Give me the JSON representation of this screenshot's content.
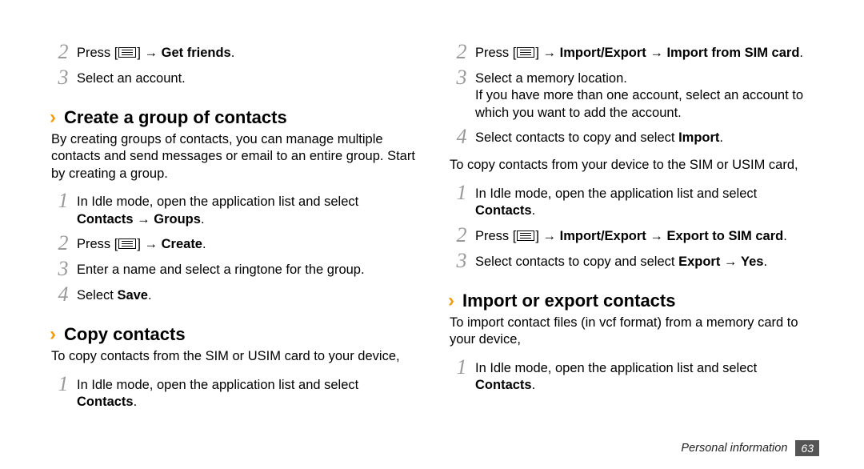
{
  "left": {
    "pre_steps": [
      {
        "n": "2",
        "html": "Press [ICON] → <b>Get friends</b>."
      },
      {
        "n": "3",
        "html": "Select an account."
      }
    ],
    "section1": {
      "title": "Create a group of contacts",
      "intro": "By creating groups of contacts, you can manage multiple contacts and send messages or email to an entire group. Start by creating a group.",
      "steps": [
        {
          "n": "1",
          "html": "In Idle mode, open the application list and select <b>Contacts</b> → <b>Groups</b>."
        },
        {
          "n": "2",
          "html": "Press [ICON] → <b>Create</b>."
        },
        {
          "n": "3",
          "html": "Enter a name and select a ringtone for the group."
        },
        {
          "n": "4",
          "html": "Select <b>Save</b>."
        }
      ]
    },
    "section2": {
      "title": "Copy contacts",
      "intro": "To copy contacts from the SIM or USIM card to your device,",
      "steps": [
        {
          "n": "1",
          "html": "In Idle mode, open the application list and select <b>Contacts</b>."
        }
      ]
    }
  },
  "right": {
    "pre_steps": [
      {
        "n": "2",
        "html": "Press [ICON] → <b>Import/Export</b> → <b>Import from SIM card</b>."
      },
      {
        "n": "3",
        "html": "Select a memory location.<br>If you have more than one account, select an account to which you want to add the account."
      },
      {
        "n": "4",
        "html": "Select contacts to copy and select <b>Import</b>."
      }
    ],
    "mid_para": "To copy contacts from your device to the SIM or USIM card,",
    "mid_steps": [
      {
        "n": "1",
        "html": "In Idle mode, open the application list and select <b>Contacts</b>."
      },
      {
        "n": "2",
        "html": "Press [ICON] → <b>Import/Export</b> → <b>Export to SIM card</b>."
      },
      {
        "n": "3",
        "html": "Select contacts to copy and select <b>Export</b> → <b>Yes</b>."
      }
    ],
    "section3": {
      "title": "Import or export contacts",
      "intro": "To import contact files (in vcf format) from a memory card to your device,",
      "steps": [
        {
          "n": "1",
          "html": "In Idle mode, open the application list and select <b>Contacts</b>."
        }
      ]
    }
  },
  "footer": {
    "label": "Personal information",
    "page": "63"
  },
  "style": {
    "chevron_color": "#f39c12",
    "stepnum_color": "#999999",
    "body_fontsize": 16.5,
    "heading_fontsize": 22,
    "stepnum_fontsize": 26
  }
}
